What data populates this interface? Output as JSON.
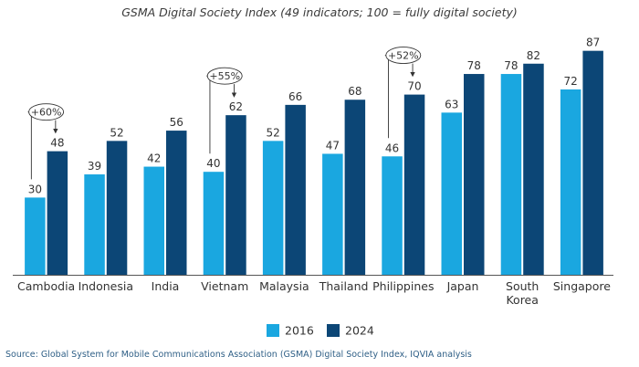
{
  "chart_data": {
    "type": "bar",
    "title": "GSMA Digital Society Index (49 indicators; 100 = fully digital society)",
    "categories": [
      "Cambodia",
      "Indonesia",
      "India",
      "Vietnam",
      "Malaysia",
      "Thailand",
      "Philippines",
      "Japan",
      "South Korea",
      "Singapore"
    ],
    "category_lines": [
      [
        "Cambodia"
      ],
      [
        "Indonesia"
      ],
      [
        "India"
      ],
      [
        "Vietnam"
      ],
      [
        "Malaysia"
      ],
      [
        "Thailand"
      ],
      [
        "Philippines"
      ],
      [
        "Japan"
      ],
      [
        "South",
        "Korea"
      ],
      [
        "Singapore"
      ]
    ],
    "series": [
      {
        "name": "2016",
        "color": "#1aa7e0",
        "values": [
          30,
          39,
          42,
          40,
          52,
          47,
          46,
          63,
          78,
          72
        ]
      },
      {
        "name": "2024",
        "color": "#0c4676",
        "values": [
          48,
          52,
          56,
          62,
          66,
          68,
          70,
          78,
          82,
          87
        ]
      }
    ],
    "annotations": [
      {
        "category": "Cambodia",
        "label": "+60%"
      },
      {
        "category": "Vietnam",
        "label": "+55%"
      },
      {
        "category": "Philippines",
        "label": "+52%"
      }
    ],
    "ylim": [
      0,
      100
    ],
    "xlabel": "",
    "ylabel": "",
    "legend": "bottom-center",
    "grid": false
  },
  "source": "Source: Global System for Mobile Communications Association (GSMA) Digital Society Index, IQVIA analysis"
}
